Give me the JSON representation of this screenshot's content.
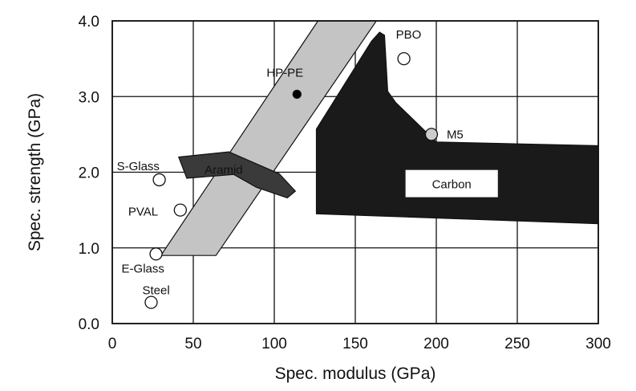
{
  "chart_data": {
    "type": "scatter",
    "title": "",
    "xlabel": "Spec. modulus (GPa)",
    "ylabel": "Spec. strength (GPa)",
    "xlim": [
      0,
      300
    ],
    "ylim": [
      0,
      4.0
    ],
    "x_ticks": [
      0,
      50,
      100,
      150,
      200,
      250,
      300
    ],
    "y_ticks": [
      0.0,
      1.0,
      2.0,
      3.0,
      4.0
    ],
    "x_tick_labels": [
      "0",
      "50",
      "100",
      "150",
      "200",
      "250",
      "300"
    ],
    "y_tick_labels": [
      "0.0",
      "1.0",
      "2.0",
      "3.0",
      "4.0"
    ],
    "grid": true,
    "points": [
      {
        "label": "PBO",
        "x": 180,
        "y": 3.5,
        "filled": false,
        "fill": "#ffffff"
      },
      {
        "label": "HP-PE",
        "x": 114,
        "y": 3.03,
        "filled": true,
        "fill": "#000000"
      },
      {
        "label": "M5",
        "x": 197,
        "y": 2.5,
        "filled": false,
        "fill": "#cccccc"
      },
      {
        "label": "S-Glass",
        "x": 29,
        "y": 1.9,
        "filled": false,
        "fill": "#ffffff"
      },
      {
        "label": "PVAL",
        "x": 42,
        "y": 1.5,
        "filled": false,
        "fill": "#ffffff"
      },
      {
        "label": "E-Glass",
        "x": 27,
        "y": 0.92,
        "filled": false,
        "fill": "#ffffff"
      },
      {
        "label": "Steel",
        "x": 24,
        "y": 0.28,
        "filled": false,
        "fill": "#ffffff"
      }
    ],
    "regions": [
      {
        "label": "",
        "name": "hp-pe-band",
        "fill": "#c4c4c4",
        "polygon": [
          [
            30,
            0.9
          ],
          [
            64,
            0.9
          ],
          [
            163,
            4.0
          ],
          [
            127,
            4.0
          ]
        ]
      },
      {
        "label": "Aramid",
        "name": "aramid",
        "fill": "#3a3a3a",
        "polygon": [
          [
            41,
            2.2
          ],
          [
            72,
            2.27
          ],
          [
            103,
            1.98
          ],
          [
            113,
            1.75
          ],
          [
            108,
            1.66
          ],
          [
            89,
            1.8
          ],
          [
            75,
            1.97
          ],
          [
            46,
            1.92
          ]
        ]
      },
      {
        "label": "Carbon",
        "name": "carbon",
        "fill": "#1a1a1a",
        "polygon": [
          [
            126,
            2.57
          ],
          [
            160,
            3.73
          ],
          [
            165,
            3.85
          ],
          [
            168,
            3.81
          ],
          [
            170,
            3.07
          ],
          [
            175,
            2.92
          ],
          [
            200,
            2.4
          ],
          [
            300,
            2.35
          ],
          [
            300,
            1.32
          ],
          [
            126,
            1.45
          ]
        ]
      }
    ]
  }
}
